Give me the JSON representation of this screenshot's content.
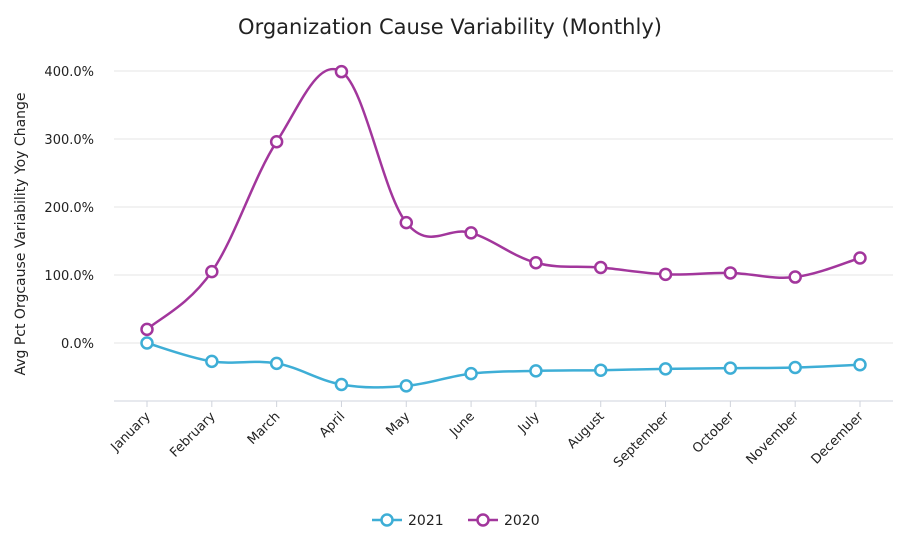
{
  "chart_data": {
    "type": "line",
    "title": "Organization Cause Variability (Monthly)",
    "xlabel": "",
    "ylabel": "Avg Pct Orgcause Variability Yoy Change",
    "categories": [
      "January",
      "February",
      "March",
      "April",
      "May",
      "June",
      "July",
      "August",
      "September",
      "October",
      "November",
      "December"
    ],
    "y_ticks": [
      "400.0%",
      "300.0%",
      "200.0%",
      "100.0%",
      "0.0%"
    ],
    "y_tick_values": [
      400,
      300,
      200,
      100,
      0
    ],
    "ylim": [
      -85,
      400
    ],
    "grid": true,
    "legend_position": "bottom",
    "smooth": true,
    "series": [
      {
        "name": "2021",
        "color": "#3eaed6",
        "values": [
          0,
          -27,
          -30,
          -61,
          -63,
          -45,
          -41,
          -40,
          -38,
          -37,
          -36,
          -32
        ]
      },
      {
        "name": "2020",
        "color": "#a2369c",
        "values": [
          20,
          105,
          296,
          399,
          177,
          162,
          118,
          111,
          101,
          103,
          97,
          125
        ]
      }
    ]
  }
}
